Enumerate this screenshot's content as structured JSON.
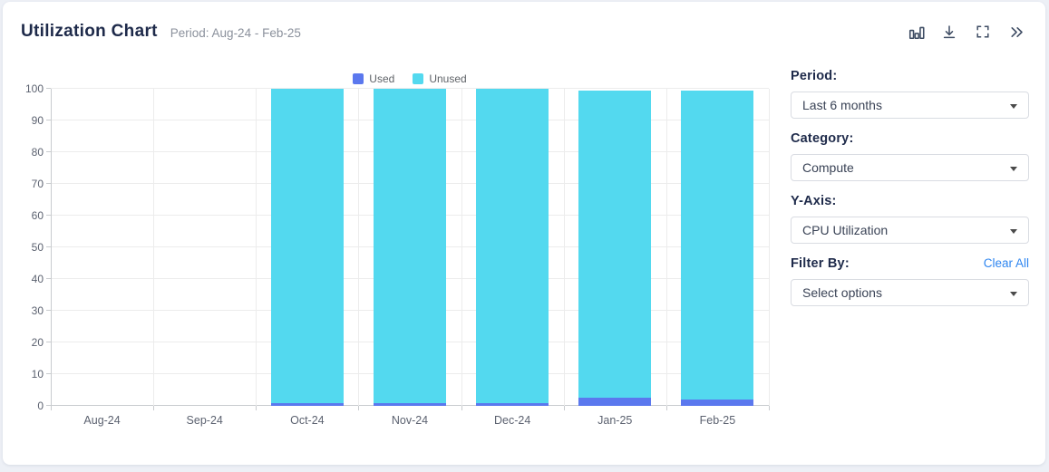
{
  "header": {
    "title": "Utilization Chart",
    "period_label": "Period: Aug-24 - Feb-25",
    "icons": [
      "bar-chart-icon",
      "download-icon",
      "fullscreen-icon",
      "double-chevron-right-icon"
    ]
  },
  "legend": [
    {
      "label": "Used",
      "color": "#5b78ee"
    },
    {
      "label": "Unused",
      "color": "#53d9ef"
    }
  ],
  "chart_data": {
    "type": "bar",
    "stacked": true,
    "title": "Utilization Chart",
    "categories": [
      "Aug-24",
      "Sep-24",
      "Oct-24",
      "Nov-24",
      "Dec-24",
      "Jan-25",
      "Feb-25"
    ],
    "series": [
      {
        "name": "Used",
        "color": "#5b78ee",
        "values": [
          0,
          0,
          1,
          1,
          1,
          2.5,
          2
        ]
      },
      {
        "name": "Unused",
        "color": "#53d9ef",
        "values": [
          0,
          0,
          99,
          99,
          99,
          97,
          97.5
        ]
      }
    ],
    "xlabel": "",
    "ylabel": "",
    "ylim": [
      0,
      100
    ],
    "ytick_step": 10,
    "yticks": [
      0,
      10,
      20,
      30,
      40,
      50,
      60,
      70,
      80,
      90,
      100
    ],
    "grid": true,
    "legend_position": "top-center"
  },
  "controls": {
    "period": {
      "label": "Period:",
      "value": "Last 6 months"
    },
    "category": {
      "label": "Category:",
      "value": "Compute"
    },
    "yaxis": {
      "label": "Y-Axis:",
      "value": "CPU Utilization"
    },
    "filter": {
      "label": "Filter By:",
      "clear_label": "Clear All",
      "value": "Select options"
    }
  },
  "colors": {
    "used": "#5b78ee",
    "unused": "#53d9ef",
    "link": "#2f86f0",
    "heading": "#1e2a4a",
    "page_background": "#edf0f6"
  }
}
